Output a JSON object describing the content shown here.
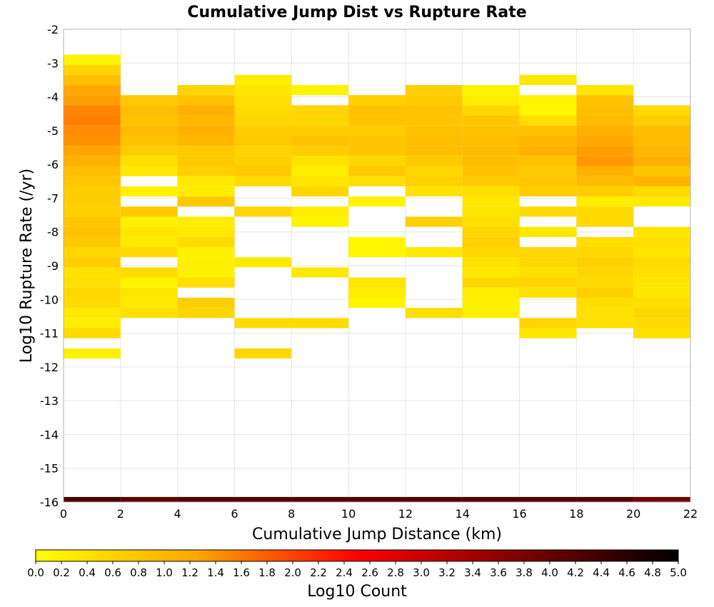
{
  "chart_data": {
    "type": "heatmap",
    "title": "Cumulative Jump Dist vs Rupture Rate",
    "xlabel": "Cumulative Jump Distance (km)",
    "ylabel": "Log10 Rupture Rate (/yr)",
    "xlim": [
      0,
      22
    ],
    "ylim": [
      -16,
      -2
    ],
    "x_ticks": [
      "0",
      "2",
      "4",
      "6",
      "8",
      "10",
      "12",
      "14",
      "16",
      "18",
      "20",
      "22"
    ],
    "y_ticks": [
      "-2",
      "-3",
      "-4",
      "-5",
      "-6",
      "-7",
      "-8",
      "-9",
      "-10",
      "-11",
      "-12",
      "-13",
      "-14",
      "-15",
      "-16"
    ],
    "grid": true,
    "x_bin_width": 2,
    "y_bin_height": 0.3,
    "colorbar": {
      "label": "Log10 Count",
      "min": 0.0,
      "max": 5.0,
      "ticks": [
        "0.0",
        "0.2",
        "0.4",
        "0.6",
        "0.8",
        "1.0",
        "1.2",
        "1.4",
        "1.6",
        "1.8",
        "2.0",
        "2.2",
        "2.4",
        "2.6",
        "2.8",
        "3.0",
        "3.2",
        "3.4",
        "3.6",
        "3.8",
        "4.0",
        "4.2",
        "4.4",
        "4.6",
        "4.8",
        "5.0"
      ],
      "colors": [
        "#ffff00",
        "#ffa500",
        "#ff0000",
        "#800000",
        "#000000"
      ]
    },
    "columns": [
      {
        "x0": 0,
        "cells": [
          [
            -2.9,
            0.15
          ],
          [
            -3.2,
            0.6
          ],
          [
            -3.5,
            0.9
          ],
          [
            -3.8,
            1.2
          ],
          [
            -4.1,
            1.3
          ],
          [
            -4.4,
            1.5
          ],
          [
            -4.7,
            1.55
          ],
          [
            -5.0,
            1.45
          ],
          [
            -5.3,
            1.4
          ],
          [
            -5.6,
            1.25
          ],
          [
            -5.9,
            1.1
          ],
          [
            -6.2,
            0.9
          ],
          [
            -6.5,
            0.8
          ],
          [
            -6.8,
            0.7
          ],
          [
            -7.1,
            0.7
          ],
          [
            -7.4,
            0.65
          ],
          [
            -7.7,
            0.8
          ],
          [
            -8.0,
            0.85
          ],
          [
            -8.3,
            0.75
          ],
          [
            -8.6,
            0.55
          ],
          [
            -8.9,
            0.7
          ],
          [
            -9.2,
            0.4
          ],
          [
            -9.5,
            0.45
          ],
          [
            -9.8,
            0.55
          ],
          [
            -10.1,
            0.5
          ],
          [
            -10.4,
            0.3
          ],
          [
            -10.7,
            0.25
          ],
          [
            -11.0,
            0.5
          ],
          [
            -11.6,
            0.2
          ],
          [
            -16.0,
            4.3
          ]
        ]
      },
      {
        "x0": 2,
        "cells": [
          [
            -4.1,
            0.75
          ],
          [
            -4.4,
            0.9
          ],
          [
            -4.7,
            0.85
          ],
          [
            -5.0,
            0.95
          ],
          [
            -5.3,
            0.85
          ],
          [
            -5.6,
            0.7
          ],
          [
            -5.9,
            0.45
          ],
          [
            -6.2,
            0.3
          ],
          [
            -6.8,
            0.2
          ],
          [
            -7.4,
            0.75
          ],
          [
            -7.7,
            0.2
          ],
          [
            -8.0,
            0.35
          ],
          [
            -8.3,
            0.3
          ],
          [
            -8.6,
            0.5
          ],
          [
            -9.2,
            0.5
          ],
          [
            -9.5,
            0.15
          ],
          [
            -9.8,
            0.35
          ],
          [
            -10.1,
            0.3
          ],
          [
            -10.4,
            0.45
          ],
          [
            -16.0,
            4.1
          ]
        ]
      },
      {
        "x0": 4,
        "cells": [
          [
            -3.8,
            0.6
          ],
          [
            -4.1,
            0.85
          ],
          [
            -4.4,
            1.1
          ],
          [
            -4.7,
            1.0
          ],
          [
            -5.0,
            1.1
          ],
          [
            -5.3,
            1.0
          ],
          [
            -5.6,
            0.75
          ],
          [
            -5.9,
            0.75
          ],
          [
            -6.2,
            0.65
          ],
          [
            -6.5,
            0.3
          ],
          [
            -6.8,
            0.25
          ],
          [
            -7.1,
            0.75
          ],
          [
            -7.7,
            0.25
          ],
          [
            -8.0,
            0.3
          ],
          [
            -8.3,
            0.5
          ],
          [
            -8.6,
            0.2
          ],
          [
            -8.9,
            0.2
          ],
          [
            -9.2,
            0.2
          ],
          [
            -9.5,
            0.45
          ],
          [
            -10.1,
            0.7
          ],
          [
            -10.4,
            0.6
          ],
          [
            -16.0,
            4.2
          ]
        ]
      },
      {
        "x0": 6,
        "cells": [
          [
            -3.5,
            0.25
          ],
          [
            -3.8,
            0.35
          ],
          [
            -4.1,
            0.45
          ],
          [
            -4.4,
            0.5
          ],
          [
            -4.7,
            0.55
          ],
          [
            -5.0,
            0.7
          ],
          [
            -5.3,
            0.75
          ],
          [
            -5.6,
            0.6
          ],
          [
            -5.9,
            0.65
          ],
          [
            -6.2,
            0.75
          ],
          [
            -6.5,
            0.5
          ],
          [
            -7.4,
            0.55
          ],
          [
            -8.9,
            0.3
          ],
          [
            -10.7,
            0.5
          ],
          [
            -11.6,
            0.55
          ],
          [
            -16.0,
            4.2
          ]
        ]
      },
      {
        "x0": 8,
        "cells": [
          [
            -3.8,
            0.15
          ],
          [
            -4.4,
            0.6
          ],
          [
            -4.7,
            0.55
          ],
          [
            -5.0,
            0.7
          ],
          [
            -5.3,
            0.85
          ],
          [
            -5.6,
            0.7
          ],
          [
            -5.9,
            0.4
          ],
          [
            -6.2,
            0.25
          ],
          [
            -6.5,
            0.35
          ],
          [
            -6.8,
            0.55
          ],
          [
            -7.4,
            0.25
          ],
          [
            -7.7,
            0.15
          ],
          [
            -9.2,
            0.3
          ],
          [
            -10.7,
            0.5
          ],
          [
            -16.0,
            4.2
          ]
        ]
      },
      {
        "x0": 10,
        "cells": [
          [
            -4.1,
            0.65
          ],
          [
            -4.4,
            0.85
          ],
          [
            -4.7,
            0.85
          ],
          [
            -5.0,
            0.7
          ],
          [
            -5.3,
            0.8
          ],
          [
            -5.6,
            0.8
          ],
          [
            -5.9,
            0.55
          ],
          [
            -6.2,
            0.75
          ],
          [
            -6.5,
            0.45
          ],
          [
            -7.1,
            0.15
          ],
          [
            -8.3,
            0.1
          ],
          [
            -8.6,
            0.1
          ],
          [
            -9.5,
            0.35
          ],
          [
            -9.8,
            0.25
          ],
          [
            -10.1,
            0.15
          ],
          [
            -16.0,
            4.2
          ]
        ]
      },
      {
        "x0": 12,
        "cells": [
          [
            -3.8,
            0.65
          ],
          [
            -4.1,
            0.75
          ],
          [
            -4.4,
            0.85
          ],
          [
            -4.7,
            0.8
          ],
          [
            -5.0,
            0.85
          ],
          [
            -5.3,
            0.9
          ],
          [
            -5.6,
            0.9
          ],
          [
            -5.9,
            0.75
          ],
          [
            -6.2,
            0.55
          ],
          [
            -6.5,
            0.65
          ],
          [
            -6.8,
            0.4
          ],
          [
            -7.7,
            0.65
          ],
          [
            -8.6,
            0.3
          ],
          [
            -10.4,
            0.45
          ],
          [
            -16.0,
            4.2
          ]
        ]
      },
      {
        "x0": 14,
        "cells": [
          [
            -3.8,
            0.15
          ],
          [
            -4.1,
            0.25
          ],
          [
            -4.4,
            0.55
          ],
          [
            -4.7,
            0.8
          ],
          [
            -5.0,
            0.85
          ],
          [
            -5.3,
            0.9
          ],
          [
            -5.6,
            0.95
          ],
          [
            -5.9,
            0.9
          ],
          [
            -6.2,
            0.85
          ],
          [
            -6.5,
            0.75
          ],
          [
            -6.8,
            0.45
          ],
          [
            -7.1,
            0.3
          ],
          [
            -7.4,
            0.35
          ],
          [
            -7.7,
            0.45
          ],
          [
            -8.0,
            0.55
          ],
          [
            -8.3,
            0.65
          ],
          [
            -8.6,
            0.55
          ],
          [
            -8.9,
            0.4
          ],
          [
            -9.2,
            0.35
          ],
          [
            -9.5,
            0.55
          ],
          [
            -9.8,
            0.25
          ],
          [
            -10.1,
            0.2
          ],
          [
            -10.4,
            0.2
          ],
          [
            -16.0,
            4.2
          ]
        ]
      },
      {
        "x0": 16,
        "cells": [
          [
            -3.5,
            0.3
          ],
          [
            -4.1,
            0.15
          ],
          [
            -4.4,
            0.1
          ],
          [
            -4.7,
            0.45
          ],
          [
            -5.0,
            0.85
          ],
          [
            -5.3,
            1.0
          ],
          [
            -5.6,
            1.1
          ],
          [
            -5.9,
            0.85
          ],
          [
            -6.2,
            0.75
          ],
          [
            -6.5,
            0.8
          ],
          [
            -6.8,
            0.7
          ],
          [
            -7.4,
            0.5
          ],
          [
            -8.0,
            0.3
          ],
          [
            -8.6,
            0.55
          ],
          [
            -8.9,
            0.55
          ],
          [
            -9.2,
            0.45
          ],
          [
            -9.5,
            0.6
          ],
          [
            -9.8,
            0.4
          ],
          [
            -10.7,
            0.6
          ],
          [
            -11.0,
            0.35
          ],
          [
            -16.0,
            4.2
          ]
        ]
      },
      {
        "x0": 18,
        "cells": [
          [
            -3.8,
            0.35
          ],
          [
            -4.1,
            0.85
          ],
          [
            -4.4,
            0.9
          ],
          [
            -4.7,
            0.95
          ],
          [
            -5.0,
            1.1
          ],
          [
            -5.3,
            1.2
          ],
          [
            -5.6,
            1.3
          ],
          [
            -5.9,
            1.35
          ],
          [
            -6.2,
            1.1
          ],
          [
            -6.5,
            0.95
          ],
          [
            -6.8,
            0.7
          ],
          [
            -7.1,
            0.25
          ],
          [
            -7.4,
            0.5
          ],
          [
            -7.7,
            0.5
          ],
          [
            -8.3,
            0.45
          ],
          [
            -8.6,
            0.55
          ],
          [
            -8.9,
            0.65
          ],
          [
            -9.2,
            0.55
          ],
          [
            -9.5,
            0.5
          ],
          [
            -9.8,
            0.65
          ],
          [
            -10.1,
            0.45
          ],
          [
            -10.4,
            0.4
          ],
          [
            -10.7,
            0.45
          ],
          [
            -16.0,
            4.2
          ]
        ]
      },
      {
        "x0": 20,
        "cells": [
          [
            -4.4,
            0.5
          ],
          [
            -4.7,
            0.7
          ],
          [
            -5.0,
            0.9
          ],
          [
            -5.3,
            0.95
          ],
          [
            -5.6,
            1.0
          ],
          [
            -5.9,
            1.1
          ],
          [
            -6.2,
            0.8
          ],
          [
            -6.5,
            1.05
          ],
          [
            -6.8,
            0.5
          ],
          [
            -7.1,
            0.3
          ],
          [
            -8.0,
            0.35
          ],
          [
            -8.3,
            0.45
          ],
          [
            -8.6,
            0.35
          ],
          [
            -8.9,
            0.5
          ],
          [
            -9.2,
            0.45
          ],
          [
            -9.5,
            0.35
          ],
          [
            -9.8,
            0.35
          ],
          [
            -10.1,
            0.45
          ],
          [
            -10.4,
            0.55
          ],
          [
            -10.7,
            0.5
          ],
          [
            -11.0,
            0.45
          ],
          [
            -16.0,
            3.9
          ]
        ]
      }
    ]
  }
}
